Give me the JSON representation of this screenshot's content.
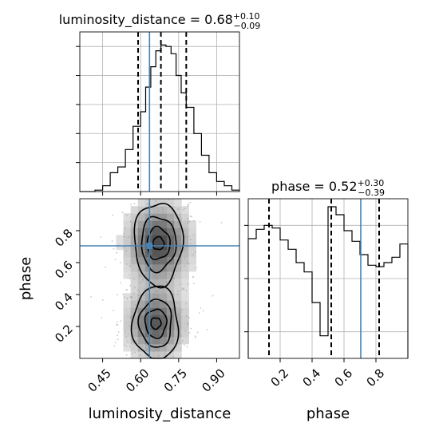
{
  "chart_data": {
    "type": "corner",
    "parameters": [
      "luminosity_distance",
      "phase"
    ],
    "injected_values": {
      "luminosity_distance": 0.635,
      "phase": 0.705
    },
    "colors": {
      "hist": "#000000",
      "truth": "#4682b4",
      "grid": "#b0b0b0",
      "scatter": "#9a9a9a"
    },
    "grid": true,
    "panels": [
      {
        "kind": "histogram",
        "param": "luminosity_distance",
        "title": {
          "main": "luminosity_distance = 0.68",
          "sup": "+0.10",
          "sub": "−0.09"
        },
        "xlim": [
          0.36,
          0.99
        ],
        "ylim": [
          0,
          0.055
        ],
        "bin_edges": [
          0.36,
          0.39,
          0.42,
          0.45,
          0.48,
          0.51,
          0.54,
          0.57,
          0.6,
          0.62,
          0.64,
          0.66,
          0.68,
          0.7,
          0.72,
          0.74,
          0.76,
          0.78,
          0.81,
          0.84,
          0.87,
          0.9,
          0.93,
          0.96,
          0.99
        ],
        "counts": [
          0,
          0,
          0.0005,
          0.002,
          0.0065,
          0.0085,
          0.0145,
          0.0225,
          0.0275,
          0.036,
          0.043,
          0.0485,
          0.0505,
          0.05,
          0.0475,
          0.04,
          0.034,
          0.029,
          0.02,
          0.0125,
          0.0065,
          0.0035,
          0.002,
          0.0005
        ],
        "quantiles": [
          0.59,
          0.68,
          0.78
        ],
        "y_ticks": [
          0.01,
          0.02,
          0.03,
          0.04,
          0.05
        ],
        "x_ticks": [
          0.45,
          0.6,
          0.75,
          0.9
        ]
      },
      {
        "kind": "histogram",
        "param": "phase",
        "title": {
          "main": "phase = 0.52",
          "sup": "+0.30",
          "sub": "−0.39"
        },
        "xlim": [
          0.0,
          1.0
        ],
        "ylim": [
          0,
          1.2
        ],
        "bin_edges": [
          0.0,
          0.05,
          0.1,
          0.15,
          0.2,
          0.25,
          0.3,
          0.35,
          0.4,
          0.45,
          0.5,
          0.55,
          0.6,
          0.65,
          0.7,
          0.75,
          0.8,
          0.85,
          0.9,
          0.95,
          1.0
        ],
        "counts": [
          0.9,
          0.97,
          1.0,
          0.98,
          0.89,
          0.82,
          0.72,
          0.65,
          0.42,
          0.17,
          1.14,
          1.08,
          0.96,
          0.88,
          0.78,
          0.7,
          0.69,
          0.72,
          0.76,
          0.86
        ],
        "quantiles": [
          0.13,
          0.52,
          0.82
        ],
        "y_ticks": [
          0.2,
          0.6,
          1.0
        ],
        "x_ticks": [
          0.2,
          0.4,
          0.6,
          0.8
        ],
        "x_tick_labels": [
          "0.2",
          "0.4",
          "0.6",
          "0.8"
        ],
        "xlabel": "phase"
      },
      {
        "kind": "2d-density",
        "x_param": "luminosity_distance",
        "y_param": "phase",
        "xlim": [
          0.36,
          0.99
        ],
        "ylim": [
          0.0,
          1.0
        ],
        "x_ticks": [
          0.45,
          0.6,
          0.75,
          0.9
        ],
        "x_tick_labels": [
          "0.45",
          "0.60",
          "0.75",
          "0.90"
        ],
        "y_ticks": [
          0.2,
          0.4,
          0.6,
          0.8
        ],
        "y_tick_labels": [
          "0.2",
          "0.4",
          "0.6",
          "0.8"
        ],
        "xlabel": "luminosity_distance",
        "ylabel": "phase",
        "modes": [
          {
            "x": 0.67,
            "y": 0.72,
            "sx": 0.075,
            "sy": 0.15,
            "weight": 1.0
          },
          {
            "x": 0.66,
            "y": 0.22,
            "sx": 0.07,
            "sy": 0.13,
            "weight": 0.9
          }
        ],
        "contour_levels": [
          {
            "mode": 0,
            "rx": 0.095,
            "ry": 0.26
          },
          {
            "mode": 0,
            "rx": 0.068,
            "ry": 0.17
          },
          {
            "mode": 0,
            "rx": 0.045,
            "ry": 0.1
          },
          {
            "mode": 0,
            "rx": 0.022,
            "ry": 0.04
          },
          {
            "mode": 1,
            "rx": 0.09,
            "ry": 0.23
          },
          {
            "mode": 1,
            "rx": 0.064,
            "ry": 0.15
          },
          {
            "mode": 1,
            "rx": 0.042,
            "ry": 0.09
          },
          {
            "mode": 1,
            "rx": 0.02,
            "ry": 0.035
          }
        ]
      }
    ]
  }
}
